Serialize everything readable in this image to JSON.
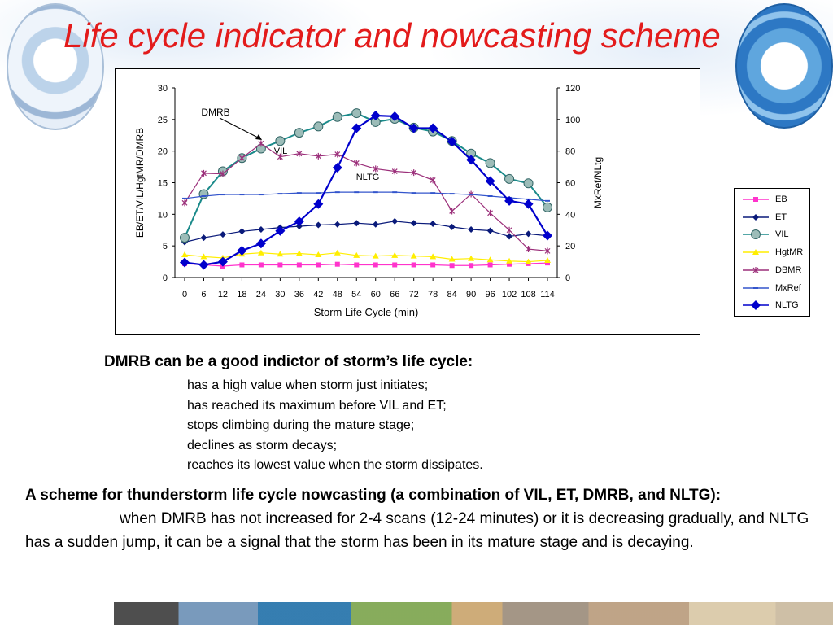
{
  "title": "Life cycle indicator and nowcasting scheme",
  "colors": {
    "title": "#e31b1b",
    "EB": "#ff33cc",
    "ET": "#0a1a7a",
    "VIL": "#1a8a8a",
    "HgtMR": "#ffee00",
    "DBMR": "#9b2f7a",
    "MxRef": "#3355cc",
    "NLTG": "#0000cc"
  },
  "chart_data": {
    "type": "line",
    "title": "",
    "xlabel": "Storm Life Cycle (min)",
    "ylabel": "EB/ET/VIL/HgtMR/DMRB",
    "y2label": "MxRef/NLtg",
    "ylim": [
      0,
      30
    ],
    "y2lim": [
      0,
      120
    ],
    "yticks": [
      "30",
      "25",
      "20",
      "15",
      "10",
      "5",
      "0"
    ],
    "y2ticks": [
      "120",
      "100",
      "80",
      "60",
      "40",
      "20",
      "0"
    ],
    "xticks": [
      "0",
      "6",
      "12",
      "18",
      "24",
      "30",
      "36",
      "42",
      "48",
      "54",
      "60",
      "66",
      "72",
      "78",
      "84",
      "90",
      "96",
      "102",
      "108",
      "114"
    ],
    "x": [
      0,
      6,
      12,
      18,
      24,
      30,
      36,
      42,
      48,
      54,
      60,
      66,
      72,
      78,
      84,
      90,
      96,
      102,
      108,
      114
    ],
    "legend_position": "right",
    "annotations": [
      "DMRB",
      "VIL",
      "NLTG"
    ],
    "series": [
      {
        "name": "EB",
        "axis": "left",
        "values": [
          2.2,
          2.0,
          1.8,
          2.0,
          2.0,
          2.0,
          2.0,
          2.0,
          2.1,
          2.0,
          2.0,
          2.0,
          2.0,
          2.0,
          1.9,
          1.9,
          2.0,
          2.1,
          2.2,
          2.3
        ]
      },
      {
        "name": "ET",
        "axis": "left",
        "values": [
          5.6,
          6.3,
          6.8,
          7.3,
          7.6,
          7.9,
          8.1,
          8.3,
          8.4,
          8.6,
          8.4,
          8.9,
          8.6,
          8.5,
          8.0,
          7.6,
          7.4,
          6.5,
          6.9,
          6.6
        ]
      },
      {
        "name": "VIL",
        "axis": "left",
        "values": [
          6.3,
          13.2,
          16.8,
          18.9,
          20.4,
          21.6,
          22.9,
          23.9,
          25.4,
          26.0,
          24.6,
          25.1,
          23.7,
          23.1,
          21.6,
          19.6,
          18.1,
          15.6,
          14.9,
          11.1
        ]
      },
      {
        "name": "HgtMR",
        "axis": "left",
        "values": [
          3.6,
          3.3,
          3.1,
          3.7,
          3.9,
          3.7,
          3.8,
          3.6,
          3.9,
          3.5,
          3.4,
          3.5,
          3.4,
          3.3,
          2.9,
          3.0,
          2.8,
          2.6,
          2.5,
          2.7
        ]
      },
      {
        "name": "DBMR",
        "axis": "left",
        "values": [
          11.8,
          16.5,
          16.4,
          18.9,
          21.2,
          19.1,
          19.6,
          19.2,
          19.5,
          18.1,
          17.2,
          16.8,
          16.6,
          15.4,
          10.5,
          13.2,
          10.2,
          7.5,
          4.5,
          4.2
        ]
      },
      {
        "name": "MxRef",
        "axis": "right",
        "values": [
          50.0,
          51.5,
          52.5,
          52.5,
          52.5,
          53.0,
          53.5,
          53.5,
          54.0,
          54.0,
          54.0,
          54.0,
          53.5,
          53.5,
          53.0,
          52.5,
          51.5,
          50.5,
          49.5,
          48.5
        ]
      },
      {
        "name": "NLTG",
        "axis": "right",
        "values": [
          9.5,
          8.0,
          10.0,
          17.0,
          21.5,
          29.5,
          35.5,
          46.5,
          69.5,
          94.5,
          102.5,
          102.0,
          94.5,
          94.5,
          86.0,
          74.5,
          61.0,
          48.5,
          46.5,
          26.5
        ]
      }
    ]
  },
  "section1": {
    "heading": "DMRB can be a good indictor of storm’s life cycle:",
    "bullets": [
      "has a high value when storm just initiates;",
      "has reached its maximum before VIL and ET;",
      "stops climbing during the mature stage;",
      "declines as storm decays;",
      "reaches its lowest value when the storm dissipates."
    ]
  },
  "section2": {
    "heading": "A scheme for thunderstorm life cycle nowcasting (a combination of VIL, ET, DMRB, and NLTG):",
    "body": "when DMRB has not increased for 2-4 scans (12-24 minutes) or it is decreasing gradually, and NLTG has a sudden jump, it can be a signal that the storm has been in its mature stage and is decaying."
  }
}
